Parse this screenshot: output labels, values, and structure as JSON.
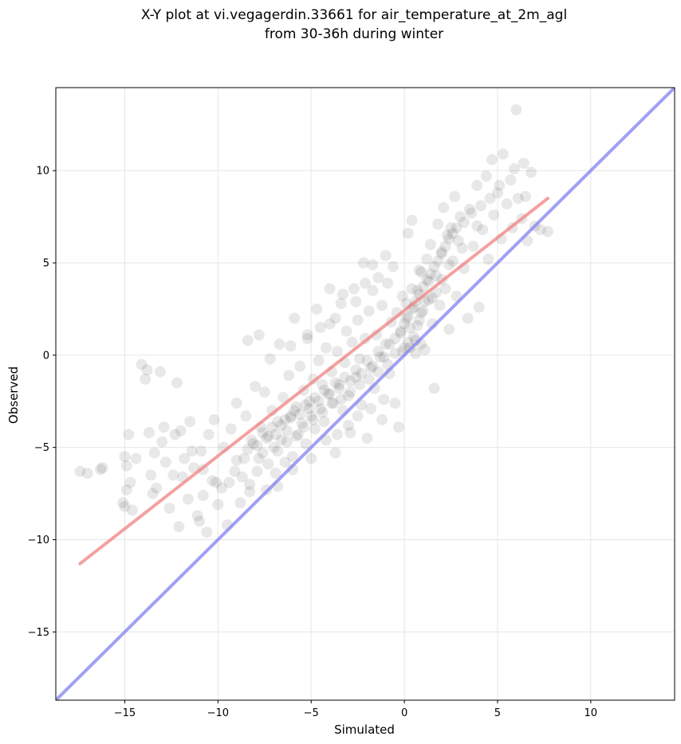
{
  "chart_data": {
    "type": "scatter",
    "title_lines": [
      "X-Y plot at vi.vegagerdin.33661 for air_temperature_at_2m_agl",
      "from 30-36h during winter"
    ],
    "xlabel": "Simulated",
    "ylabel": "Observed",
    "xlim": [
      -18.7,
      14.5
    ],
    "ylim": [
      -18.7,
      14.5
    ],
    "xticks": [
      -15,
      -10,
      -5,
      0,
      5,
      10
    ],
    "yticks": [
      -15,
      -10,
      -5,
      0,
      5,
      10
    ],
    "xtick_labels": [
      "−15",
      "−10",
      "−5",
      "0",
      "5",
      "10"
    ],
    "ytick_labels": [
      "−15",
      "−10",
      "−5",
      "0",
      "5",
      "10"
    ],
    "grid": true,
    "colors": {
      "points": "#000000",
      "fit_line": "#f28080",
      "identity_line": "#8080f0",
      "grid": "#e6e6e6"
    },
    "series": [
      {
        "kind": "points",
        "points": [
          [
            -17.4,
            -6.3
          ],
          [
            -17.0,
            -6.4
          ],
          [
            -16.3,
            -6.2
          ],
          [
            -16.2,
            -6.1
          ],
          [
            -15.1,
            -8.0
          ],
          [
            -15.0,
            -8.2
          ],
          [
            -15.0,
            -5.5
          ],
          [
            -14.9,
            -6.0
          ],
          [
            -14.9,
            -7.3
          ],
          [
            -14.8,
            -4.3
          ],
          [
            -14.7,
            -6.9
          ],
          [
            -14.6,
            -8.4
          ],
          [
            -14.4,
            -5.6
          ],
          [
            -14.1,
            -0.5
          ],
          [
            -13.9,
            -1.3
          ],
          [
            -13.8,
            -0.8
          ],
          [
            -13.7,
            -4.2
          ],
          [
            -13.6,
            -6.5
          ],
          [
            -13.5,
            -7.5
          ],
          [
            -13.4,
            -5.3
          ],
          [
            -13.3,
            -7.2
          ],
          [
            -13.1,
            -0.9
          ],
          [
            -13.0,
            -4.7
          ],
          [
            -12.8,
            -5.8
          ],
          [
            -12.6,
            -8.3
          ],
          [
            -12.4,
            -6.5
          ],
          [
            -12.2,
            -1.5
          ],
          [
            -12.1,
            -9.3
          ],
          [
            -12.0,
            -4.1
          ],
          [
            -11.8,
            -5.6
          ],
          [
            -11.6,
            -7.8
          ],
          [
            -11.5,
            -3.6
          ],
          [
            -11.3,
            -6.1
          ],
          [
            -11.1,
            -8.7
          ],
          [
            -11.0,
            -9.0
          ],
          [
            -10.9,
            -5.2
          ],
          [
            -10.8,
            -7.6
          ],
          [
            -10.6,
            -9.6
          ],
          [
            -10.5,
            -4.3
          ],
          [
            -10.3,
            -6.8
          ],
          [
            -10.2,
            -3.5
          ],
          [
            -10.0,
            -8.1
          ],
          [
            -9.8,
            -7.2
          ],
          [
            -9.7,
            -5.0
          ],
          [
            -9.5,
            -9.2
          ],
          [
            -9.3,
            -4.0
          ],
          [
            -9.1,
            -6.3
          ],
          [
            -9.0,
            -2.6
          ],
          [
            -8.8,
            -8.0
          ],
          [
            -8.6,
            -5.6
          ],
          [
            -8.5,
            -3.3
          ],
          [
            -8.4,
            0.8
          ],
          [
            -8.3,
            -7.0
          ],
          [
            -8.1,
            -4.8
          ],
          [
            -8.0,
            -1.7
          ],
          [
            -7.9,
            -6.3
          ],
          [
            -7.8,
            1.1
          ],
          [
            -7.7,
            -3.9
          ],
          [
            -7.6,
            -5.3
          ],
          [
            -7.5,
            -2.0
          ],
          [
            -7.4,
            -7.3
          ],
          [
            -7.3,
            -4.4
          ],
          [
            -7.2,
            -0.2
          ],
          [
            -7.1,
            -3.0
          ],
          [
            -7.0,
            -5.0
          ],
          [
            -6.9,
            -6.4
          ],
          [
            -6.8,
            -3.6
          ],
          [
            -6.7,
            0.6
          ],
          [
            -6.6,
            -4.6
          ],
          [
            -6.5,
            -2.3
          ],
          [
            -6.4,
            -5.8
          ],
          [
            -6.3,
            -4.1
          ],
          [
            -6.2,
            -1.1
          ],
          [
            -6.1,
            -3.4
          ],
          [
            -6.0,
            -5.5
          ],
          [
            -5.9,
            2.0
          ],
          [
            -5.8,
            -2.8
          ],
          [
            -5.7,
            -4.3
          ],
          [
            -5.6,
            -0.6
          ],
          [
            -5.5,
            -3.7
          ],
          [
            -5.4,
            -1.9
          ],
          [
            -5.3,
            -4.8
          ],
          [
            -5.2,
            0.9
          ],
          [
            -5.1,
            -2.5
          ],
          [
            -5.0,
            -3.3
          ],
          [
            -4.9,
            -1.3
          ],
          [
            -4.8,
            -4.0
          ],
          [
            -4.7,
            2.5
          ],
          [
            -4.6,
            -0.3
          ],
          [
            -4.5,
            -2.9
          ],
          [
            -4.4,
            -1.6
          ],
          [
            -4.3,
            -3.6
          ],
          [
            -4.2,
            0.4
          ],
          [
            -4.1,
            -2.1
          ],
          [
            -4.0,
            1.7
          ],
          [
            -3.9,
            -0.9
          ],
          [
            -3.8,
            -2.6
          ],
          [
            -3.7,
            -5.3
          ],
          [
            -3.6,
            0.2
          ],
          [
            -3.5,
            -1.6
          ],
          [
            -3.4,
            2.8
          ],
          [
            -3.3,
            -3.0
          ],
          [
            -3.2,
            -0.4
          ],
          [
            -3.1,
            1.3
          ],
          [
            -3.0,
            -2.2
          ],
          [
            -2.9,
            -4.2
          ],
          [
            -2.8,
            0.7
          ],
          [
            -2.7,
            3.6
          ],
          [
            -2.6,
            -1.2
          ],
          [
            -2.5,
            1.9
          ],
          [
            -2.4,
            -0.2
          ],
          [
            -2.3,
            -2.7
          ],
          [
            -2.2,
            5.0
          ],
          [
            -2.1,
            0.9
          ],
          [
            -2.0,
            -4.5
          ],
          [
            -1.9,
            2.4
          ],
          [
            -1.8,
            -0.7
          ],
          [
            -1.7,
            3.5
          ],
          [
            -1.6,
            -1.8
          ],
          [
            -1.5,
            1.1
          ],
          [
            -1.4,
            4.2
          ],
          [
            -1.3,
            -0.1
          ],
          [
            -1.2,
            2.7
          ],
          [
            -1.1,
            -2.4
          ],
          [
            -1.0,
            0.6
          ],
          [
            -0.9,
            3.9
          ],
          [
            -0.8,
            -1.0
          ],
          [
            -0.7,
            1.8
          ],
          [
            -0.6,
            4.8
          ],
          [
            -0.5,
            0.1
          ],
          [
            -0.4,
            2.3
          ],
          [
            -0.3,
            -3.9
          ],
          [
            -0.2,
            1.2
          ],
          [
            -0.1,
            3.2
          ],
          [
            0.0,
            0.4
          ],
          [
            0.1,
            2.0
          ],
          [
            0.2,
            6.6
          ],
          [
            0.3,
            1.5
          ],
          [
            0.4,
            7.3
          ],
          [
            0.5,
            2.6
          ],
          [
            0.6,
            0.8
          ],
          [
            0.7,
            3.5
          ],
          [
            0.8,
            1.9
          ],
          [
            0.9,
            4.5
          ],
          [
            1.0,
            2.4
          ],
          [
            1.1,
            0.3
          ],
          [
            1.2,
            5.2
          ],
          [
            1.3,
            3.0
          ],
          [
            1.4,
            6.0
          ],
          [
            1.5,
            1.7
          ],
          [
            1.6,
            -1.8
          ],
          [
            1.7,
            4.3
          ],
          [
            1.8,
            7.1
          ],
          [
            1.9,
            2.7
          ],
          [
            2.0,
            5.6
          ],
          [
            2.1,
            8.0
          ],
          [
            2.2,
            3.6
          ],
          [
            2.3,
            6.5
          ],
          [
            2.4,
            1.4
          ],
          [
            2.5,
            6.9
          ],
          [
            2.6,
            5.1
          ],
          [
            2.7,
            8.6
          ],
          [
            2.8,
            3.2
          ],
          [
            2.9,
            6.2
          ],
          [
            3.0,
            7.5
          ],
          [
            3.2,
            4.7
          ],
          [
            3.4,
            2.0
          ],
          [
            3.5,
            7.9
          ],
          [
            3.7,
            5.9
          ],
          [
            3.9,
            9.2
          ],
          [
            4.0,
            2.6
          ],
          [
            4.2,
            6.8
          ],
          [
            4.4,
            9.7
          ],
          [
            4.5,
            5.2
          ],
          [
            4.7,
            10.6
          ],
          [
            4.8,
            7.6
          ],
          [
            5.0,
            8.8
          ],
          [
            5.2,
            6.3
          ],
          [
            5.3,
            10.9
          ],
          [
            5.5,
            8.2
          ],
          [
            5.7,
            9.5
          ],
          [
            5.8,
            6.9
          ],
          [
            5.9,
            10.1
          ],
          [
            6.0,
            13.3
          ],
          [
            6.1,
            8.5
          ],
          [
            6.3,
            7.4
          ],
          [
            6.4,
            10.4
          ],
          [
            6.5,
            8.6
          ],
          [
            6.6,
            6.2
          ],
          [
            6.8,
            9.9
          ],
          [
            7.0,
            7.0
          ],
          [
            7.3,
            6.8
          ],
          [
            7.7,
            6.7
          ],
          [
            -8.4,
            -5.1
          ],
          [
            -8.2,
            -4.6
          ],
          [
            -7.9,
            -4.9
          ],
          [
            -7.6,
            -4.2
          ],
          [
            -7.4,
            -4.5
          ],
          [
            -7.1,
            -3.9
          ],
          [
            -6.9,
            -4.3
          ],
          [
            -6.6,
            -3.8
          ],
          [
            -6.4,
            -3.5
          ],
          [
            -6.1,
            -3.3
          ],
          [
            -5.9,
            -3.0
          ],
          [
            -5.6,
            -3.2
          ],
          [
            -5.3,
            -2.7
          ],
          [
            -5.1,
            -2.9
          ],
          [
            -4.8,
            -2.3
          ],
          [
            -4.6,
            -2.5
          ],
          [
            -4.3,
            -1.9
          ],
          [
            -4.0,
            -2.1
          ],
          [
            -3.7,
            -1.5
          ],
          [
            -3.5,
            -1.8
          ],
          [
            -3.2,
            -1.2
          ],
          [
            -2.9,
            -1.4
          ],
          [
            -2.6,
            -0.8
          ],
          [
            -2.3,
            -1.0
          ],
          [
            -2.0,
            -0.3
          ],
          [
            -1.7,
            -0.6
          ],
          [
            -1.4,
            0.2
          ],
          [
            -1.1,
            -0.1
          ],
          [
            -0.8,
            0.6
          ],
          [
            -0.5,
            0.9
          ],
          [
            -0.2,
            1.3
          ],
          [
            0.0,
            1.7
          ],
          [
            0.2,
            2.1
          ],
          [
            0.4,
            2.5
          ],
          [
            0.6,
            2.9
          ],
          [
            0.8,
            3.3
          ],
          [
            1.0,
            3.7
          ],
          [
            1.2,
            4.1
          ],
          [
            1.4,
            4.4
          ],
          [
            1.6,
            4.8
          ],
          [
            1.8,
            5.1
          ],
          [
            2.0,
            5.5
          ],
          [
            2.2,
            5.9
          ],
          [
            2.4,
            6.3
          ],
          [
            2.6,
            6.6
          ],
          [
            2.8,
            6.9
          ],
          [
            0.3,
            0.4
          ],
          [
            0.6,
            0.1
          ],
          [
            0.9,
            0.6
          ],
          [
            0.5,
            1.0
          ],
          [
            0.2,
            0.7
          ],
          [
            -0.1,
            0.2
          ],
          [
            0.7,
            1.6
          ],
          [
            0.9,
            2.3
          ],
          [
            1.1,
            2.9
          ],
          [
            0.4,
            3.6
          ],
          [
            0.1,
            2.8
          ],
          [
            0.8,
            4.6
          ],
          [
            1.3,
            4.0
          ],
          [
            1.5,
            3.1
          ],
          [
            -7.8,
            -5.6
          ],
          [
            -7.3,
            -5.9
          ],
          [
            -6.8,
            -5.2
          ],
          [
            -6.3,
            -4.7
          ],
          [
            -5.8,
            -4.4
          ],
          [
            -5.4,
            -3.9
          ],
          [
            -4.9,
            -3.5
          ],
          [
            -4.4,
            -3.1
          ],
          [
            -3.9,
            -2.6
          ],
          [
            -3.4,
            -2.4
          ],
          [
            -2.9,
            -2.0
          ],
          [
            -2.4,
            -1.6
          ],
          [
            -1.9,
            -1.3
          ],
          [
            -1.4,
            -0.9
          ],
          [
            -0.9,
            -0.5
          ],
          [
            -9.0,
            -5.7
          ],
          [
            -8.7,
            -6.6
          ],
          [
            -8.3,
            -7.4
          ],
          [
            -9.4,
            -6.9
          ],
          [
            -10.1,
            -6.9
          ],
          [
            -10.8,
            -6.2
          ],
          [
            -11.4,
            -5.2
          ],
          [
            -12.3,
            -4.3
          ],
          [
            -12.9,
            -3.9
          ],
          [
            -11.9,
            -6.6
          ],
          [
            -3.0,
            -3.8
          ],
          [
            -2.5,
            -3.3
          ],
          [
            -1.8,
            -2.9
          ],
          [
            -1.2,
            -3.5
          ],
          [
            -0.5,
            -2.6
          ],
          [
            -4.2,
            -4.6
          ],
          [
            -3.6,
            -4.3
          ],
          [
            -5.0,
            -5.6
          ],
          [
            -6.0,
            -6.2
          ],
          [
            -6.8,
            -7.1
          ],
          [
            -2.6,
            2.9
          ],
          [
            -3.3,
            3.3
          ],
          [
            -4.0,
            3.6
          ],
          [
            -1.7,
            4.9
          ],
          [
            -1.0,
            5.4
          ],
          [
            -2.1,
            3.9
          ],
          [
            -3.7,
            2.0
          ],
          [
            -4.5,
            1.5
          ],
          [
            -5.2,
            1.1
          ],
          [
            -6.1,
            0.5
          ],
          [
            3.2,
            7.2
          ],
          [
            3.6,
            7.7
          ],
          [
            4.1,
            8.1
          ],
          [
            4.6,
            8.5
          ],
          [
            5.1,
            9.2
          ],
          [
            3.9,
            7.0
          ],
          [
            3.1,
            5.8
          ],
          [
            2.4,
            4.9
          ],
          [
            2.0,
            4.1
          ],
          [
            1.7,
            3.4
          ]
        ]
      },
      {
        "kind": "line",
        "role": "fit",
        "points": [
          [
            -17.4,
            -11.3
          ],
          [
            7.7,
            8.5
          ]
        ]
      },
      {
        "kind": "line",
        "role": "identity",
        "points": [
          [
            -18.7,
            -18.7
          ],
          [
            14.5,
            14.5
          ]
        ]
      }
    ]
  }
}
